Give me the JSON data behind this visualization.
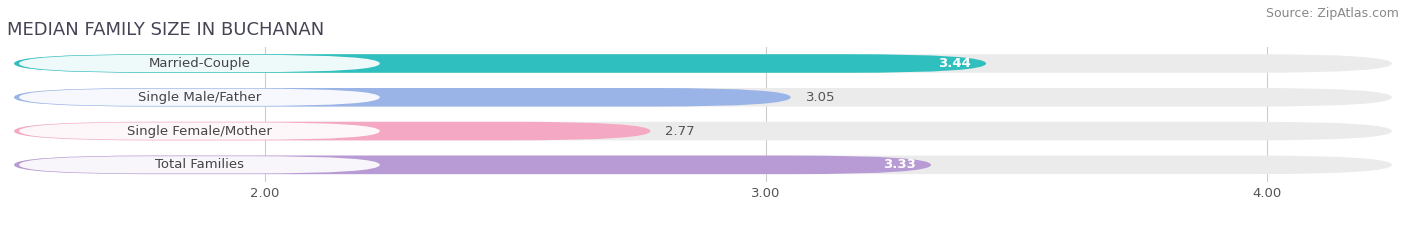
{
  "title": "MEDIAN FAMILY SIZE IN BUCHANAN",
  "source": "Source: ZipAtlas.com",
  "categories": [
    "Married-Couple",
    "Single Male/Father",
    "Single Female/Mother",
    "Total Families"
  ],
  "values": [
    3.44,
    3.05,
    2.77,
    3.33
  ],
  "bar_colors": [
    "#30bfbf",
    "#9ab4e8",
    "#f5a8c4",
    "#b89ad4"
  ],
  "value_inside": [
    true,
    false,
    false,
    true
  ],
  "xticks": [
    2.0,
    3.0,
    4.0
  ],
  "xtick_labels": [
    "2.00",
    "3.00",
    "4.00"
  ],
  "xmin": 1.5,
  "xmax": 4.25,
  "background_color": "#ffffff",
  "bar_bg_color": "#ebebeb",
  "label_bg_color": "#ffffff",
  "label_text_color": "#444444",
  "value_inside_color": "#ffffff",
  "value_outside_color": "#555555",
  "title_color": "#444455",
  "source_color": "#888888",
  "grid_color": "#cccccc",
  "title_fontsize": 13,
  "label_fontsize": 9.5,
  "value_fontsize": 9.5,
  "source_fontsize": 9,
  "tick_fontsize": 9.5,
  "bar_height": 0.55,
  "bar_gap": 0.18
}
